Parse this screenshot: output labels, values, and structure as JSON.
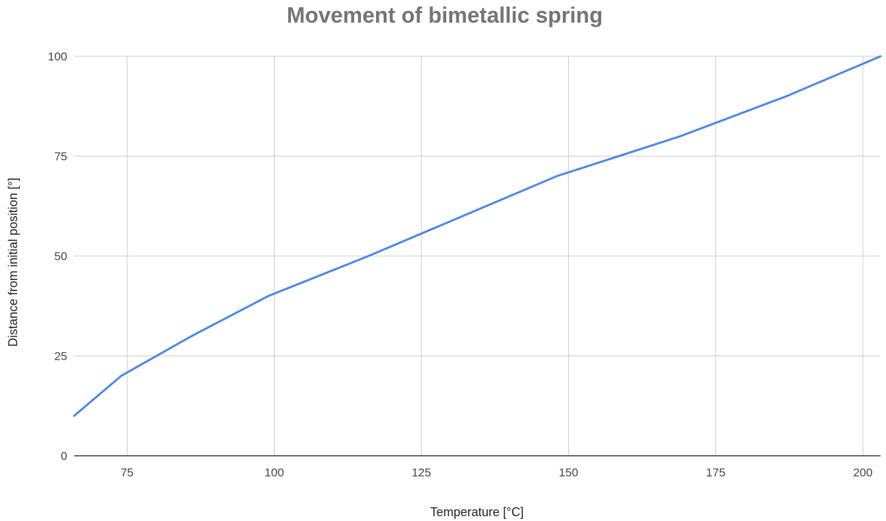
{
  "chart_data": {
    "type": "line",
    "title": "Movement of bimetallic spring",
    "xlabel": "Temperature [°C]",
    "ylabel": "Distance from initial position [°]",
    "xlim": [
      66,
      203
    ],
    "ylim": [
      0,
      100
    ],
    "x_ticks": [
      75,
      100,
      125,
      150,
      175,
      200
    ],
    "y_ticks": [
      0,
      25,
      50,
      75,
      100
    ],
    "grid": true,
    "legend": "none",
    "series": [
      {
        "color": "#4a86e8",
        "x": [
          66,
          74,
          86,
          99,
          116,
          148,
          169,
          187,
          203
        ],
        "y": [
          10,
          20,
          30,
          40,
          50,
          70,
          80,
          90,
          100
        ]
      }
    ]
  }
}
